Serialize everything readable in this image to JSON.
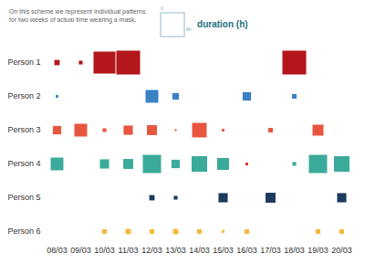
{
  "chart_data": {
    "type": "scatter",
    "marker": "square",
    "subtitle": "On this scheme we represent individual patterns for two weeks of actual time wearing a mask.",
    "x": [
      "08/03",
      "09/03",
      "10/03",
      "11/03",
      "12/03",
      "13/03",
      "14/03",
      "15/03",
      "16/03",
      "17/03",
      "18/03",
      "19/03",
      "20/03"
    ],
    "size_label": "duration (h)",
    "size_range": [
      0,
      8
    ],
    "size_ticks": [
      {
        "value": 0,
        "label": "0"
      },
      {
        "value": 8,
        "label": "8h"
      }
    ],
    "series": [
      {
        "name": "Person 1",
        "color": "#b3161b",
        "values": [
          0.4,
          0.2,
          6.8,
          8,
          null,
          null,
          null,
          null,
          null,
          null,
          8,
          null,
          null
        ]
      },
      {
        "name": "Person 2",
        "color": "#3a80c3",
        "values": [
          0.1,
          null,
          null,
          null,
          2.3,
          0.6,
          null,
          null,
          1.0,
          null,
          0.3,
          null,
          null
        ]
      },
      {
        "name": "Person 3",
        "color": "#e8553f",
        "values": [
          1.0,
          2.3,
          0.2,
          1.2,
          1.4,
          0.05,
          3.0,
          0.1,
          null,
          0.3,
          null,
          1.7,
          null
        ]
      },
      {
        "name": "Person 4",
        "color": "#3aaa9b",
        "values": [
          2.3,
          null,
          1.2,
          1.4,
          4.7,
          1.0,
          3.4,
          2.0,
          0.1,
          null,
          0.2,
          4.7,
          3.4
        ],
        "colors": [
          "#3aaa9b",
          null,
          "#3aaa9b",
          "#3aaa9b",
          "#3aaa9b",
          "#3aaa9b",
          "#3aaa9b",
          "#3aaa9b",
          "#d42a2a",
          null,
          "#3aaa9b",
          "#3aaa9b",
          "#3aaa9b"
        ]
      },
      {
        "name": "Person 5",
        "color": "#1b3a5e",
        "values": [
          null,
          null,
          null,
          null,
          0.4,
          0.2,
          null,
          1.2,
          null,
          1.4,
          null,
          null,
          1.2
        ]
      },
      {
        "name": "Person 6",
        "color": "#f5b83a",
        "values": [
          null,
          null,
          0.3,
          0.4,
          0.3,
          0.4,
          0.3,
          0.1,
          0.3,
          null,
          null,
          0.3,
          0.3
        ]
      }
    ]
  }
}
